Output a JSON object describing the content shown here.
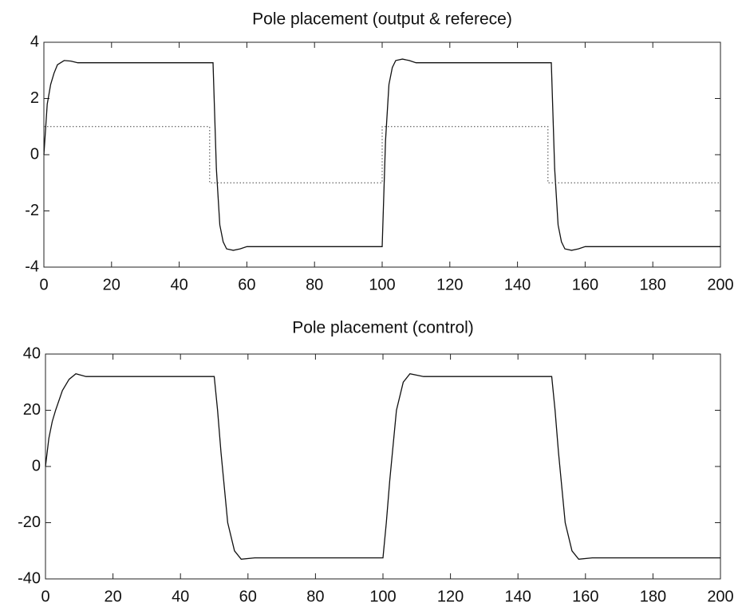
{
  "chart_data": [
    {
      "type": "line",
      "title": "Pole placement (output & referece)",
      "xlim": [
        0,
        200
      ],
      "xticks": [
        0,
        20,
        40,
        60,
        80,
        100,
        120,
        140,
        160,
        180,
        200
      ],
      "ylim": [
        -4,
        4
      ],
      "yticks": [
        -4,
        -2,
        0,
        2,
        4
      ],
      "series": [
        {
          "color": "#111111",
          "linestyle": "solid",
          "x": [
            0,
            1,
            2,
            3,
            4,
            6,
            8,
            10,
            50,
            51,
            52,
            53,
            54,
            56,
            58,
            60,
            100,
            101,
            102,
            103,
            104,
            106,
            108,
            110,
            150,
            151,
            152,
            153,
            154,
            156,
            158,
            160,
            200
          ],
          "values": [
            0,
            1.8,
            2.5,
            2.9,
            3.2,
            3.35,
            3.33,
            3.27,
            3.27,
            -0.5,
            -2.5,
            -3.1,
            -3.35,
            -3.4,
            -3.35,
            -3.27,
            -3.27,
            0.5,
            2.5,
            3.1,
            3.35,
            3.4,
            3.35,
            3.27,
            3.27,
            -0.5,
            -2.5,
            -3.1,
            -3.35,
            -3.4,
            -3.35,
            -3.27,
            -3.27
          ]
        },
        {
          "color": "#444444",
          "linestyle": "dotted",
          "x": [
            0,
            49,
            49,
            100,
            100,
            149,
            149,
            200
          ],
          "values": [
            1,
            1,
            -1,
            -1,
            1,
            1,
            -1,
            -1
          ]
        }
      ]
    },
    {
      "type": "line",
      "title": "Pole placement (control)",
      "xlim": [
        0,
        200
      ],
      "xticks": [
        0,
        20,
        40,
        60,
        80,
        100,
        120,
        140,
        160,
        180,
        200
      ],
      "ylim": [
        -40,
        40
      ],
      "yticks": [
        -40,
        -20,
        0,
        20,
        40
      ],
      "series": [
        {
          "color": "#111111",
          "linestyle": "solid",
          "x": [
            0,
            1,
            2,
            3,
            5,
            7,
            9,
            12,
            50,
            51,
            52,
            54,
            56,
            58,
            62,
            100,
            101,
            102,
            104,
            106,
            108,
            112,
            150,
            151,
            152,
            154,
            156,
            158,
            162,
            200
          ],
          "values": [
            0,
            10,
            16,
            20,
            27,
            31,
            33,
            32,
            32,
            20,
            5,
            -20,
            -30,
            -33,
            -32.5,
            -32.5,
            -20,
            -5,
            20,
            30,
            33,
            32,
            32,
            20,
            5,
            -20,
            -30,
            -33,
            -32.5,
            -32.5
          ]
        }
      ]
    }
  ]
}
